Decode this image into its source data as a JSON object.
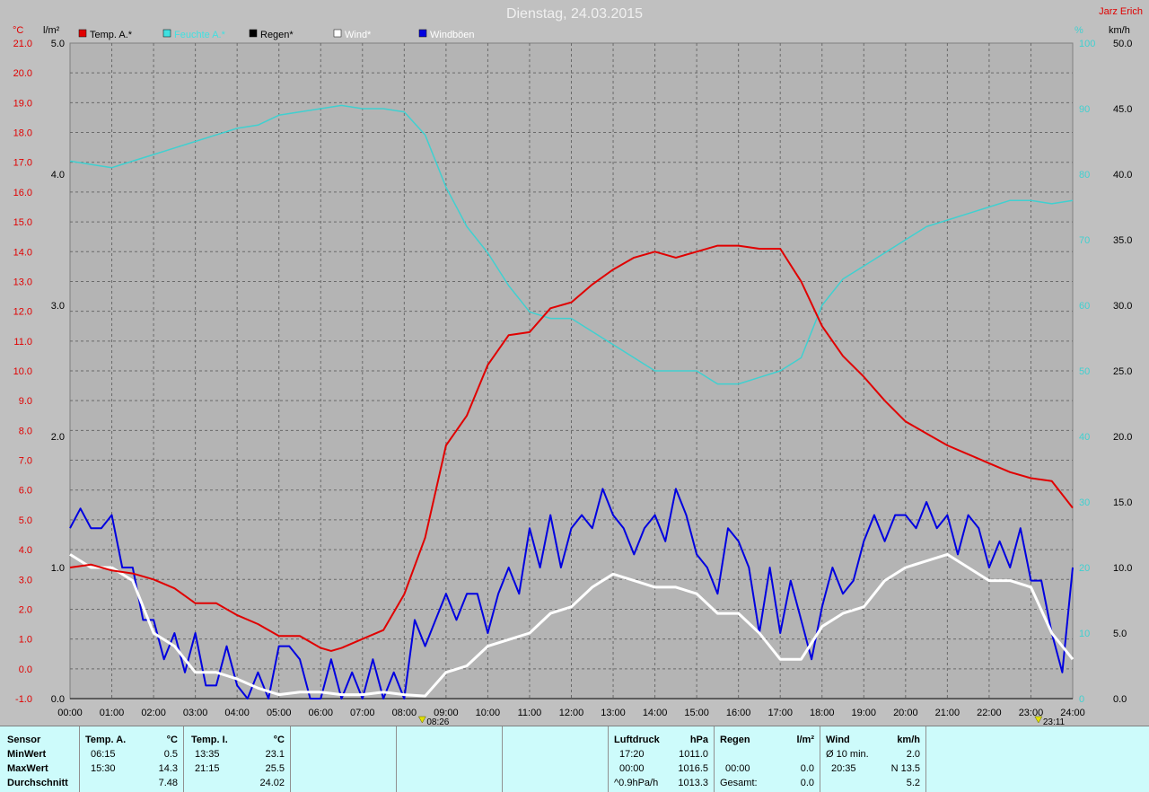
{
  "title": "Dienstag, 24.03.2015",
  "author": "Jarz Erich",
  "units": {
    "temp": "°C",
    "rain": "l/m²",
    "hum": "%",
    "wind": "km/h"
  },
  "colors": {
    "temp": "#e00000",
    "hum": "#40d0d0",
    "rain": "#000000",
    "wind": "#ffffff",
    "gust": "#0000e0",
    "bg": "#b4b4b4"
  },
  "legend": [
    {
      "label": "Temp. A.*",
      "color": "#e00000"
    },
    {
      "label": "Feuchte A.*",
      "color": "#40e0e0"
    },
    {
      "label": "Regen*",
      "color": "#000000"
    },
    {
      "label": "Wind*",
      "color": "#ffffff"
    },
    {
      "label": "Windböen",
      "color": "#0000e0"
    }
  ],
  "chart_data": {
    "type": "line",
    "title": "Dienstag, 24.03.2015",
    "x_ticks": [
      "00:00",
      "01:00",
      "02:00",
      "03:00",
      "04:00",
      "05:00",
      "06:00",
      "07:00",
      "08:00",
      "09:00",
      "10:00",
      "11:00",
      "12:00",
      "13:00",
      "14:00",
      "15:00",
      "16:00",
      "17:00",
      "18:00",
      "19:00",
      "20:00",
      "21:00",
      "22:00",
      "23:00",
      "24:00"
    ],
    "axes": {
      "temp": {
        "label": "°C",
        "range": [
          -1.0,
          21.0
        ],
        "ticks": [
          "21.0",
          "20.0",
          "19.0",
          "18.0",
          "17.0",
          "16.0",
          "15.0",
          "14.0",
          "13.0",
          "12.0",
          "11.0",
          "10.0",
          "9.0",
          "8.0",
          "7.0",
          "6.0",
          "5.0",
          "4.0",
          "3.0",
          "2.0",
          "1.0",
          "0.0",
          "-1.0"
        ]
      },
      "rain": {
        "label": "l/m²",
        "range": [
          0.0,
          5.0
        ],
        "ticks": [
          "5.0",
          "4.0",
          "3.0",
          "2.0",
          "1.0",
          "0.0"
        ]
      },
      "hum": {
        "label": "%",
        "range": [
          0,
          100
        ],
        "ticks": [
          "100",
          "90",
          "80",
          "70",
          "60",
          "50",
          "40",
          "30",
          "20",
          "10",
          "0"
        ]
      },
      "wind": {
        "label": "km/h",
        "range": [
          0.0,
          50.0
        ],
        "ticks": [
          "50.0",
          "45.0",
          "40.0",
          "35.0",
          "30.0",
          "25.0",
          "20.0",
          "15.0",
          "10.0",
          "5.0",
          "0.0"
        ]
      }
    },
    "grid": true,
    "markers": [
      {
        "time": 8.43,
        "label": "08:26"
      },
      {
        "time": 23.18,
        "label": "23:11"
      }
    ],
    "series": [
      {
        "name": "Temp. A.*",
        "axis": "temp",
        "x": [
          0,
          0.5,
          1,
          1.5,
          2,
          2.5,
          3,
          3.5,
          4,
          4.5,
          5,
          5.5,
          6,
          6.25,
          6.5,
          7,
          7.5,
          8,
          8.5,
          9,
          9.5,
          10,
          10.5,
          11,
          11.5,
          12,
          12.5,
          13,
          13.5,
          14,
          14.5,
          15,
          15.5,
          16,
          16.5,
          17,
          17.5,
          18,
          18.5,
          19,
          19.5,
          20,
          20.5,
          21,
          21.5,
          22,
          22.5,
          23,
          23.5,
          24
        ],
        "y": [
          3.4,
          3.5,
          3.3,
          3.2,
          3.0,
          2.7,
          2.2,
          2.2,
          1.8,
          1.5,
          1.1,
          1.1,
          0.7,
          0.6,
          0.7,
          1.0,
          1.3,
          2.5,
          4.4,
          7.5,
          8.5,
          10.2,
          11.2,
          11.3,
          12.1,
          12.3,
          12.9,
          13.4,
          13.8,
          14.0,
          13.8,
          14.0,
          14.2,
          14.2,
          14.1,
          14.1,
          13.0,
          11.5,
          10.5,
          9.8,
          9.0,
          8.3,
          7.9,
          7.5,
          7.2,
          6.9,
          6.6,
          6.4,
          6.3,
          5.4
        ]
      },
      {
        "name": "Feuchte A.*",
        "axis": "hum",
        "x": [
          0,
          0.5,
          1,
          1.5,
          2,
          2.5,
          3,
          3.5,
          4,
          4.5,
          5,
          5.5,
          6,
          6.5,
          7,
          7.5,
          8,
          8.5,
          9,
          9.5,
          10,
          10.5,
          11,
          11.5,
          12,
          12.5,
          13,
          13.5,
          14,
          14.5,
          15,
          15.5,
          16,
          16.5,
          17,
          17.5,
          18,
          18.5,
          19,
          19.5,
          20,
          20.5,
          21,
          21.5,
          22,
          22.5,
          23,
          23.5,
          24
        ],
        "y": [
          82,
          81.5,
          81,
          82,
          83,
          84,
          85,
          86,
          87,
          87.5,
          89,
          89.5,
          90,
          90.5,
          90,
          90,
          89.5,
          86,
          78,
          72,
          68,
          63,
          59,
          58,
          58,
          56,
          54,
          52,
          50,
          50,
          50,
          48,
          48,
          49,
          50,
          52,
          60,
          64,
          66,
          68,
          70,
          72,
          73,
          74,
          75,
          76,
          76,
          75.5,
          76
        ]
      },
      {
        "name": "Regen*",
        "axis": "rain",
        "x": [
          0,
          24
        ],
        "y": [
          0,
          0
        ]
      },
      {
        "name": "Wind*",
        "axis": "wind",
        "x": [
          0,
          0.5,
          1,
          1.5,
          2,
          2.5,
          3,
          3.5,
          4,
          4.5,
          5,
          5.5,
          6,
          6.5,
          7,
          7.5,
          8,
          8.5,
          9,
          9.5,
          10,
          10.5,
          11,
          11.5,
          12,
          12.5,
          13,
          13.5,
          14,
          14.5,
          15,
          15.5,
          16,
          16.5,
          17,
          17.5,
          18,
          18.5,
          19,
          19.5,
          20,
          20.5,
          21,
          21.5,
          22,
          22.5,
          23,
          23.5,
          24
        ],
        "y": [
          11,
          10,
          10,
          9,
          5,
          4,
          2,
          2,
          1.5,
          0.8,
          0.3,
          0.5,
          0.5,
          0.3,
          0.3,
          0.5,
          0.3,
          0.2,
          2,
          2.5,
          4,
          4.5,
          5,
          6.5,
          7,
          8.5,
          9.5,
          9,
          8.5,
          8.5,
          8,
          6.5,
          6.5,
          5,
          3,
          3,
          5.5,
          6.5,
          7,
          9,
          10,
          10.5,
          11,
          10,
          9,
          9,
          8.5,
          5,
          3
        ]
      },
      {
        "name": "Windböen",
        "axis": "wind",
        "x": [
          0,
          0.25,
          0.5,
          0.75,
          1,
          1.25,
          1.5,
          1.75,
          2,
          2.25,
          2.5,
          2.75,
          3,
          3.25,
          3.5,
          3.75,
          4,
          4.25,
          4.5,
          4.75,
          5,
          5.25,
          5.5,
          5.75,
          6,
          6.25,
          6.5,
          6.75,
          7,
          7.25,
          7.5,
          7.75,
          8,
          8.25,
          8.5,
          8.75,
          9,
          9.25,
          9.5,
          9.75,
          10,
          10.25,
          10.5,
          10.75,
          11,
          11.25,
          11.5,
          11.75,
          12,
          12.25,
          12.5,
          12.75,
          13,
          13.25,
          13.5,
          13.75,
          14,
          14.25,
          14.5,
          14.75,
          15,
          15.25,
          15.5,
          15.75,
          16,
          16.25,
          16.5,
          16.75,
          17,
          17.25,
          17.5,
          17.75,
          18,
          18.25,
          18.5,
          18.75,
          19,
          19.25,
          19.5,
          19.75,
          20,
          20.25,
          20.5,
          20.75,
          21,
          21.25,
          21.5,
          21.75,
          22,
          22.25,
          22.5,
          22.75,
          23,
          23.25,
          23.5,
          23.75,
          24
        ],
        "y": [
          13,
          14.5,
          13,
          13,
          14,
          10,
          10,
          6,
          6,
          3,
          5,
          2,
          5,
          1,
          1,
          4,
          1,
          0,
          2,
          0,
          4,
          4,
          3,
          0,
          0,
          3,
          0,
          2,
          0,
          3,
          0,
          2,
          0,
          6,
          4,
          6,
          8,
          6,
          8,
          8,
          5,
          8,
          10,
          8,
          13,
          10,
          14,
          10,
          13,
          14,
          13,
          16,
          14,
          13,
          11,
          13,
          14,
          12,
          16,
          14,
          11,
          10,
          8,
          13,
          12,
          10,
          5,
          10,
          5,
          9,
          6,
          3,
          7,
          10,
          8,
          9,
          12,
          14,
          12,
          14,
          14,
          13,
          15,
          13,
          14,
          11,
          14,
          13,
          10,
          12,
          10,
          13,
          9,
          9,
          5,
          2,
          10
        ]
      }
    ]
  },
  "footer": {
    "sensor": {
      "header": "Sensor",
      "rows": [
        "MinWert",
        "MaxWert",
        "Durchschnitt"
      ]
    },
    "temp_a": {
      "header": "Temp. A.",
      "unit": "°C",
      "min_time": "06:15",
      "min_val": "0.5",
      "max_time": "15:30",
      "max_val": "14.3",
      "avg": "7.48"
    },
    "temp_i": {
      "header": "Temp. I.",
      "unit": "°C",
      "min_time": "13:35",
      "min_val": "23.1",
      "max_time": "21:15",
      "max_val": "25.5",
      "avg": "24.02"
    },
    "pressure": {
      "header": "Luftdruck",
      "unit": "hPa",
      "min_time": "17:20",
      "min_val": "1011.0",
      "max_time": "00:00",
      "max_val": "1016.5",
      "trend_label": "^0.9hPa/h",
      "current": "1013.3"
    },
    "rain": {
      "header": "Regen",
      "unit": "l/m²",
      "max_time": "00:00",
      "max_val": "0.0",
      "total_label": "Gesamt:",
      "total": "0.0"
    },
    "wind": {
      "header": "Wind",
      "unit": "km/h",
      "avg_label": "Ø 10 min.",
      "avg_val": "2.0",
      "max_time": "20:35",
      "max_val": "N 13.5",
      "mean": "5.2"
    }
  }
}
